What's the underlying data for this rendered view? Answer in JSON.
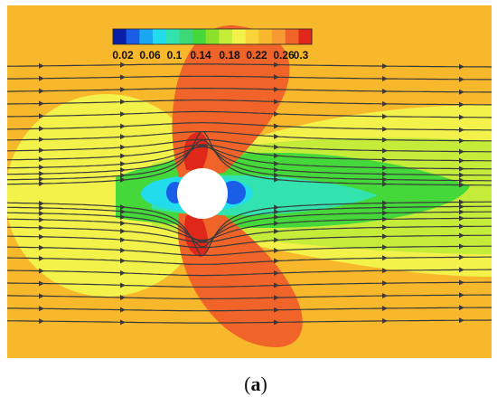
{
  "figure": {
    "colorbar": {
      "ticks": [
        "0.02",
        "0.06",
        "0.1",
        "0.14",
        "0.18",
        "0.22",
        "0.26",
        "0.3"
      ],
      "colors": [
        "#0a1ea8",
        "#1a5ee8",
        "#1aa6f0",
        "#22dcec",
        "#32e3b0",
        "#3ed878",
        "#45d83a",
        "#8ae02a",
        "#c6ec3a",
        "#f2f24a",
        "#f8d438",
        "#f8b82c",
        "#f89a34",
        "#f0642a",
        "#e0281a"
      ]
    },
    "field_colors": {
      "background": "#f8b82c",
      "yellow": "#f2f24a",
      "light_green": "#c6ec3a",
      "green": "#45d83a",
      "teal": "#32e3b0",
      "cyan": "#22dcec",
      "blue": "#1a5ee8",
      "orange_lobe": "#f0642a",
      "red": "#e0281a",
      "streamline": "#3a3a3a",
      "cylinder": "#ffffff"
    }
  },
  "caption": {
    "open": "(",
    "letter": "a",
    "close": ")"
  }
}
